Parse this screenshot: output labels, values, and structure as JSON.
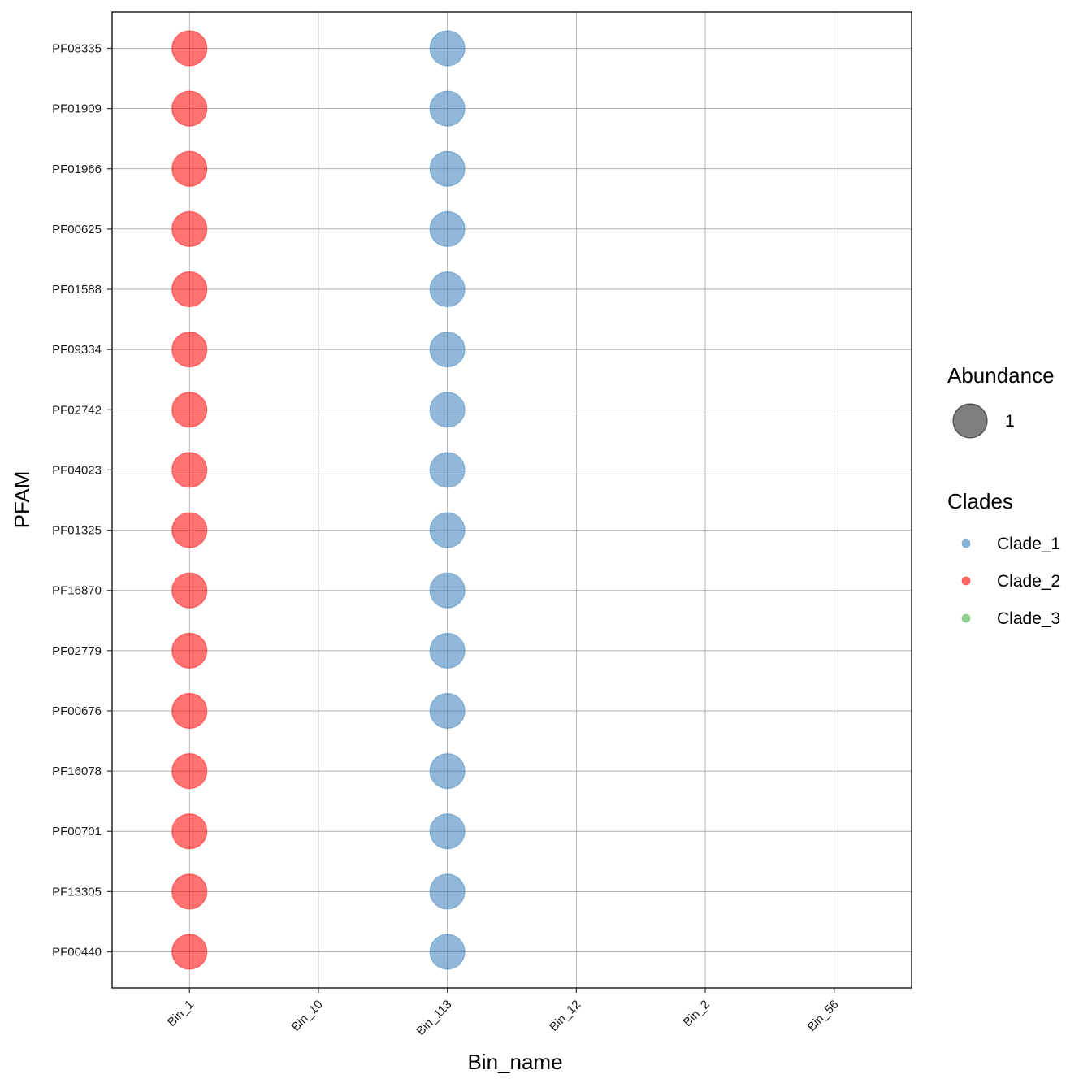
{
  "chart_data": {
    "type": "scatter",
    "title": "",
    "xlabel": "Bin_name",
    "ylabel": "PFAM",
    "x_categories": [
      "Bin_1",
      "Bin_10",
      "Bin_113",
      "Bin_12",
      "Bin_2",
      "Bin_56"
    ],
    "y_categories": [
      "PF08335",
      "PF01909",
      "PF01966",
      "PF00625",
      "PF01588",
      "PF09334",
      "PF02742",
      "PF04023",
      "PF01325",
      "PF16870",
      "PF02779",
      "PF00676",
      "PF16078",
      "PF00701",
      "PF13305",
      "PF00440"
    ],
    "points": [
      {
        "x": "Bin_1",
        "y": "PF08335",
        "clade": "Clade_2",
        "abundance": 1
      },
      {
        "x": "Bin_1",
        "y": "PF01909",
        "clade": "Clade_2",
        "abundance": 1
      },
      {
        "x": "Bin_1",
        "y": "PF01966",
        "clade": "Clade_2",
        "abundance": 1
      },
      {
        "x": "Bin_1",
        "y": "PF00625",
        "clade": "Clade_2",
        "abundance": 1
      },
      {
        "x": "Bin_1",
        "y": "PF01588",
        "clade": "Clade_2",
        "abundance": 1
      },
      {
        "x": "Bin_1",
        "y": "PF09334",
        "clade": "Clade_2",
        "abundance": 1
      },
      {
        "x": "Bin_1",
        "y": "PF02742",
        "clade": "Clade_2",
        "abundance": 1
      },
      {
        "x": "Bin_1",
        "y": "PF04023",
        "clade": "Clade_2",
        "abundance": 1
      },
      {
        "x": "Bin_1",
        "y": "PF01325",
        "clade": "Clade_2",
        "abundance": 1
      },
      {
        "x": "Bin_1",
        "y": "PF16870",
        "clade": "Clade_2",
        "abundance": 1
      },
      {
        "x": "Bin_1",
        "y": "PF02779",
        "clade": "Clade_2",
        "abundance": 1
      },
      {
        "x": "Bin_1",
        "y": "PF00676",
        "clade": "Clade_2",
        "abundance": 1
      },
      {
        "x": "Bin_1",
        "y": "PF16078",
        "clade": "Clade_2",
        "abundance": 1
      },
      {
        "x": "Bin_1",
        "y": "PF00701",
        "clade": "Clade_2",
        "abundance": 1
      },
      {
        "x": "Bin_1",
        "y": "PF13305",
        "clade": "Clade_2",
        "abundance": 1
      },
      {
        "x": "Bin_1",
        "y": "PF00440",
        "clade": "Clade_2",
        "abundance": 1
      },
      {
        "x": "Bin_113",
        "y": "PF08335",
        "clade": "Clade_1",
        "abundance": 1
      },
      {
        "x": "Bin_113",
        "y": "PF01909",
        "clade": "Clade_1",
        "abundance": 1
      },
      {
        "x": "Bin_113",
        "y": "PF01966",
        "clade": "Clade_1",
        "abundance": 1
      },
      {
        "x": "Bin_113",
        "y": "PF00625",
        "clade": "Clade_1",
        "abundance": 1
      },
      {
        "x": "Bin_113",
        "y": "PF01588",
        "clade": "Clade_1",
        "abundance": 1
      },
      {
        "x": "Bin_113",
        "y": "PF09334",
        "clade": "Clade_1",
        "abundance": 1
      },
      {
        "x": "Bin_113",
        "y": "PF02742",
        "clade": "Clade_1",
        "abundance": 1
      },
      {
        "x": "Bin_113",
        "y": "PF04023",
        "clade": "Clade_1",
        "abundance": 1
      },
      {
        "x": "Bin_113",
        "y": "PF01325",
        "clade": "Clade_1",
        "abundance": 1
      },
      {
        "x": "Bin_113",
        "y": "PF16870",
        "clade": "Clade_1",
        "abundance": 1
      },
      {
        "x": "Bin_113",
        "y": "PF02779",
        "clade": "Clade_1",
        "abundance": 1
      },
      {
        "x": "Bin_113",
        "y": "PF00676",
        "clade": "Clade_1",
        "abundance": 1
      },
      {
        "x": "Bin_113",
        "y": "PF16078",
        "clade": "Clade_1",
        "abundance": 1
      },
      {
        "x": "Bin_113",
        "y": "PF00701",
        "clade": "Clade_1",
        "abundance": 1
      },
      {
        "x": "Bin_113",
        "y": "PF13305",
        "clade": "Clade_1",
        "abundance": 1
      },
      {
        "x": "Bin_113",
        "y": "PF00440",
        "clade": "Clade_1",
        "abundance": 1
      }
    ],
    "grid": true,
    "legends": {
      "size": {
        "title": "Abundance",
        "entries": [
          {
            "label": "1",
            "value": 1
          }
        ]
      },
      "color": {
        "title": "Clades",
        "entries": [
          {
            "label": "Clade_1",
            "color": "#377EB8"
          },
          {
            "label": "Clade_2",
            "color": "#FF0000"
          },
          {
            "label": "Clade_3",
            "color": "#4DAF4A"
          }
        ]
      },
      "placement": "right"
    },
    "point_opacity": 0.55
  }
}
